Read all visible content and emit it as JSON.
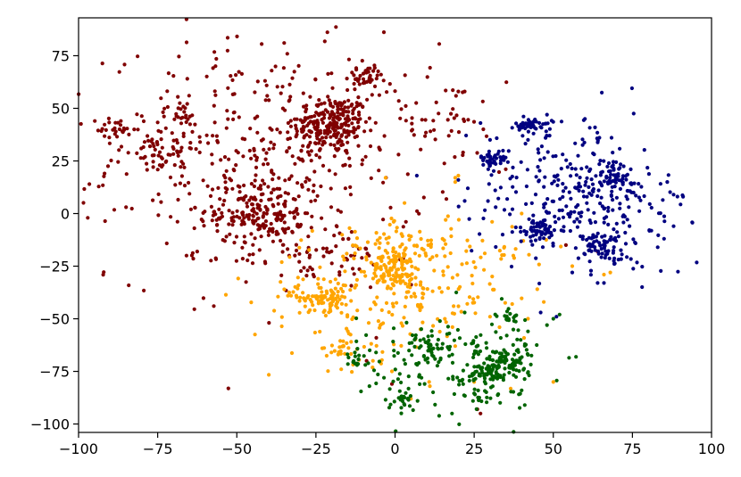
{
  "chart_data": {
    "type": "scatter",
    "title": "",
    "xlabel": "",
    "ylabel": "",
    "xlim": [
      -100,
      100
    ],
    "ylim": [
      -104,
      93
    ],
    "xticks": [
      -100,
      -75,
      -50,
      -25,
      0,
      25,
      50,
      75,
      100
    ],
    "yticks": [
      -100,
      -75,
      -50,
      -25,
      0,
      25,
      50,
      75
    ],
    "xtick_labels": [
      "−100",
      "−75",
      "−50",
      "−25",
      "0",
      "25",
      "50",
      "75",
      "100"
    ],
    "ytick_labels": [
      "−100",
      "−75",
      "−50",
      "−25",
      "0",
      "25",
      "50",
      "75"
    ],
    "grid": false,
    "legend": "none",
    "series": [
      {
        "color": "#800000",
        "clusters": [
          {
            "cx": -20,
            "cy": 42,
            "sx": 6,
            "sy": 7,
            "n": 220
          },
          {
            "cx": -43,
            "cy": 0,
            "sx": 7,
            "sy": 7,
            "n": 160
          },
          {
            "cx": -10,
            "cy": 65,
            "sx": 3,
            "sy": 3,
            "n": 40
          },
          {
            "cx": -40,
            "cy": 25,
            "sx": 25,
            "sy": 28,
            "n": 420
          },
          {
            "cx": -75,
            "cy": 32,
            "sx": 6,
            "sy": 7,
            "n": 60
          },
          {
            "cx": -88,
            "cy": 40,
            "sx": 3,
            "sy": 3,
            "n": 25
          },
          {
            "cx": -68,
            "cy": 48,
            "sx": 3,
            "sy": 3,
            "n": 20
          },
          {
            "cx": -25,
            "cy": -20,
            "sx": 12,
            "sy": 8,
            "n": 60
          },
          {
            "cx": 15,
            "cy": 45,
            "sx": 10,
            "sy": 10,
            "n": 40
          }
        ],
        "points": [
          [
            -9,
            -70
          ],
          [
            -1,
            -81
          ],
          [
            27,
            -95
          ],
          [
            26,
            -93
          ],
          [
            22,
            58
          ],
          [
            20,
            58
          ],
          [
            -85,
            3
          ],
          [
            64,
            -18
          ],
          [
            54,
            -15
          ]
        ]
      },
      {
        "color": "#ffa500",
        "clusters": [
          {
            "cx": 0,
            "cy": -27,
            "sx": 4,
            "sy": 4,
            "n": 100
          },
          {
            "cx": -22,
            "cy": -40,
            "sx": 4,
            "sy": 3,
            "n": 70
          },
          {
            "cx": 2,
            "cy": -15,
            "sx": 8,
            "sy": 5,
            "n": 70
          },
          {
            "cx": -5,
            "cy": -40,
            "sx": 20,
            "sy": 15,
            "n": 190
          },
          {
            "cx": -17,
            "cy": -65,
            "sx": 4,
            "sy": 3,
            "n": 20
          },
          {
            "cx": 22,
            "cy": -25,
            "sx": 5,
            "sy": 10,
            "n": 25
          },
          {
            "cx": 38,
            "cy": -15,
            "sx": 5,
            "sy": 8,
            "n": 15
          }
        ],
        "points": [
          [
            19,
            15
          ],
          [
            19,
            17
          ],
          [
            20,
            18
          ],
          [
            -3,
            17
          ],
          [
            3,
            5
          ],
          [
            16,
            -3
          ],
          [
            40,
            0
          ],
          [
            56,
            -25
          ],
          [
            68,
            -28
          ],
          [
            66,
            -29
          ],
          [
            47,
            -42
          ],
          [
            42,
            -50
          ],
          [
            30,
            -49
          ],
          [
            19,
            -63
          ],
          [
            -1,
            -75
          ],
          [
            25,
            -80
          ],
          [
            50,
            -80
          ],
          [
            33,
            -54
          ],
          [
            11,
            -82
          ],
          [
            5,
            -88
          ],
          [
            -35,
            -36
          ],
          [
            37,
            -43
          ],
          [
            -7,
            -70
          ],
          [
            -23,
            -64
          ],
          [
            -17,
            -74
          ]
        ]
      },
      {
        "color": "#006400",
        "clusters": [
          {
            "cx": 35,
            "cy": -72,
            "sx": 4,
            "sy": 4,
            "n": 90
          },
          {
            "cx": 12,
            "cy": -62,
            "sx": 4,
            "sy": 3,
            "n": 40
          },
          {
            "cx": 27,
            "cy": -76,
            "sx": 2,
            "sy": 2,
            "n": 30
          },
          {
            "cx": 3,
            "cy": -88,
            "sx": 2,
            "sy": 2,
            "n": 25
          },
          {
            "cx": 36,
            "cy": -48,
            "sx": 2,
            "sy": 3,
            "n": 20
          },
          {
            "cx": -12,
            "cy": -70,
            "sx": 2,
            "sy": 2,
            "n": 15
          },
          {
            "cx": 28,
            "cy": -87,
            "sx": 3,
            "sy": 2,
            "n": 15
          },
          {
            "cx": 18,
            "cy": -72,
            "sx": 15,
            "sy": 12,
            "n": 150
          }
        ],
        "points": [
          [
            -8,
            -65
          ],
          [
            -6,
            -66
          ],
          [
            48,
            -53
          ],
          [
            50,
            -50
          ],
          [
            52,
            -48
          ],
          [
            42,
            -56
          ],
          [
            40,
            -84
          ],
          [
            22,
            -47
          ],
          [
            18,
            -95
          ],
          [
            41,
            -91
          ]
        ]
      },
      {
        "color": "#000080",
        "clusters": [
          {
            "cx": 44,
            "cy": 42,
            "sx": 3,
            "sy": 1.5,
            "n": 50
          },
          {
            "cx": 31,
            "cy": 26,
            "sx": 2,
            "sy": 2,
            "n": 40
          },
          {
            "cx": 70,
            "cy": 16,
            "sx": 4,
            "sy": 5,
            "n": 70
          },
          {
            "cx": 45,
            "cy": -8,
            "sx": 3,
            "sy": 3,
            "n": 55
          },
          {
            "cx": 66,
            "cy": -16,
            "sx": 3,
            "sy": 3,
            "n": 50
          },
          {
            "cx": 55,
            "cy": 10,
            "sx": 15,
            "sy": 17,
            "n": 230
          },
          {
            "cx": 75,
            "cy": -10,
            "sx": 8,
            "sy": 10,
            "n": 50
          }
        ],
        "points": [
          [
            88,
            9
          ],
          [
            91,
            8
          ],
          [
            86,
            15
          ],
          [
            88,
            -6
          ],
          [
            85,
            -12
          ],
          [
            83,
            -16
          ],
          [
            42,
            35
          ],
          [
            30,
            35
          ],
          [
            20,
            16
          ],
          [
            23,
            12
          ],
          [
            34,
            -10
          ],
          [
            27,
            43
          ],
          [
            60,
            45
          ],
          [
            48,
            47
          ],
          [
            56,
            -28
          ],
          [
            66,
            -33
          ],
          [
            64,
            -33
          ],
          [
            46,
            -47
          ],
          [
            51,
            -49
          ],
          [
            22,
            6
          ]
        ]
      }
    ]
  }
}
